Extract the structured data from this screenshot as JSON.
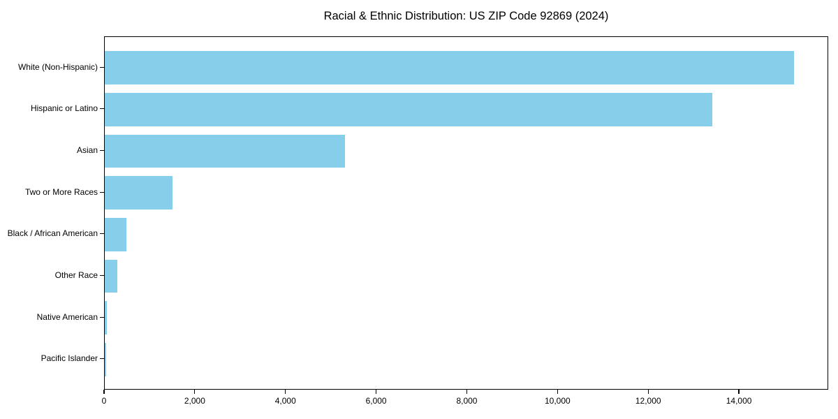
{
  "chart_data": {
    "type": "bar",
    "orientation": "horizontal",
    "title": "Racial & Ethnic Distribution: US ZIP Code 92869 (2024)",
    "categories": [
      "White (Non-Hispanic)",
      "Hispanic or Latino",
      "Asian",
      "Two or More Races",
      "Black / African American",
      "Other Race",
      "Native American",
      "Pacific Islander"
    ],
    "values": [
      15200,
      13400,
      5300,
      1500,
      470,
      280,
      40,
      30
    ],
    "bar_color": "#87CEEB",
    "xlabel": "",
    "ylabel": "",
    "xlim": [
      0,
      15970
    ],
    "xticks": {
      "values": [
        0,
        2000,
        4000,
        6000,
        8000,
        10000,
        12000,
        14000
      ],
      "labels": [
        "0",
        "2,000",
        "4,000",
        "6,000",
        "8,000",
        "10,000",
        "12,000",
        "14,000"
      ]
    },
    "grid": false,
    "legend": null,
    "background_color": "#ffffff",
    "border_color": "#000000"
  }
}
